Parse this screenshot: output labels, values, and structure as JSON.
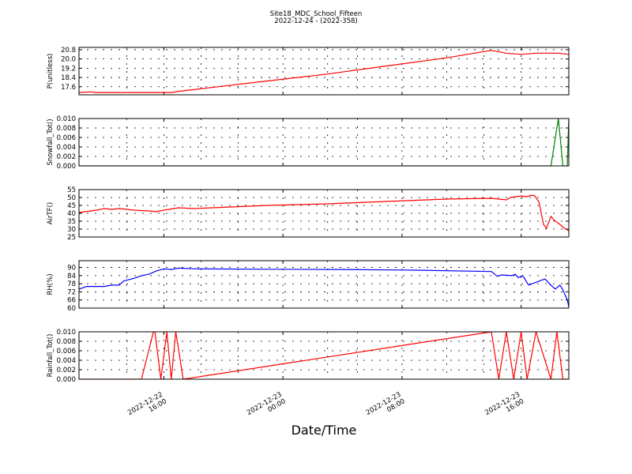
{
  "figure": {
    "title": "Site18_MDC_School_Fifteen",
    "subtitle": "2022-12-24 - (2022-358)",
    "xlabel": "Date/Time",
    "x_ticks": [
      {
        "t": 3,
        "lines": [
          "2022-12-22",
          "16:00"
        ]
      },
      {
        "t": 11,
        "lines": [
          "2022-12-23",
          "00:00"
        ]
      },
      {
        "t": 19,
        "lines": [
          "2022-12-23",
          "08:00"
        ]
      },
      {
        "t": 27,
        "lines": [
          "2022-12-23",
          "16:00"
        ]
      }
    ],
    "x_minor_ticks": [
      0.5,
      5.5,
      8,
      14,
      16,
      22,
      24.5
    ]
  },
  "chart_data": [
    {
      "type": "line",
      "id": "p",
      "ylabel": "P(unitless)",
      "color": "#ff0000",
      "ylim": [
        16.9,
        21.0
      ],
      "yticks": [
        17.6,
        18.4,
        19.2,
        20.0,
        20.8
      ],
      "ytick_labels": [
        "17.6",
        "18.4",
        "19.2",
        "20.0",
        "20.8"
      ],
      "points": [
        [
          -2.7,
          17.1
        ],
        [
          -1.9,
          17.15
        ],
        [
          -1.6,
          17.1
        ],
        [
          0,
          17.1
        ],
        [
          2,
          17.1
        ],
        [
          3.5,
          17.1
        ],
        [
          4,
          17.2
        ],
        [
          6,
          17.5
        ],
        [
          10,
          18.1
        ],
        [
          14,
          18.7
        ],
        [
          18,
          19.4
        ],
        [
          22,
          20.1
        ],
        [
          25,
          20.75
        ],
        [
          26,
          20.5
        ],
        [
          27,
          20.4
        ],
        [
          28,
          20.5
        ],
        [
          29.5,
          20.5
        ],
        [
          30.2,
          20.4
        ]
      ]
    },
    {
      "type": "line",
      "id": "snowfall",
      "ylabel": "Snowfall_Tot()",
      "color": "#008000",
      "ylim": [
        0,
        0.01
      ],
      "yticks": [
        0,
        0.002,
        0.004,
        0.006,
        0.008,
        0.01
      ],
      "ytick_labels": [
        "0.000",
        "0.002",
        "0.004",
        "0.006",
        "0.008",
        "0.010"
      ],
      "points": [
        [
          -2.7,
          0
        ],
        [
          28.5,
          0
        ],
        [
          29.0,
          0
        ],
        [
          29.5,
          0.01
        ],
        [
          29.8,
          0
        ],
        [
          30.1,
          0
        ],
        [
          30.2,
          0.01
        ]
      ]
    },
    {
      "type": "line",
      "id": "airtf",
      "ylabel": "AirTF()",
      "color": "#ff0000",
      "ylim": [
        25,
        55
      ],
      "yticks": [
        25,
        30,
        35,
        40,
        45,
        50,
        55
      ],
      "ytick_labels": [
        "25",
        "30",
        "35",
        "40",
        "45",
        "50",
        "55"
      ],
      "points": [
        [
          -2.7,
          40.5
        ],
        [
          -1.5,
          42
        ],
        [
          -1,
          43
        ],
        [
          -0.5,
          42.5
        ],
        [
          0,
          43
        ],
        [
          0.5,
          42.5
        ],
        [
          1,
          42
        ],
        [
          2,
          41.5
        ],
        [
          2.5,
          41
        ],
        [
          3,
          42
        ],
        [
          4,
          43.5
        ],
        [
          5,
          43
        ],
        [
          10,
          45
        ],
        [
          14,
          46
        ],
        [
          18,
          47.5
        ],
        [
          22,
          49
        ],
        [
          25,
          49.5
        ],
        [
          26,
          48.5
        ],
        [
          26.3,
          50
        ],
        [
          27,
          51
        ],
        [
          27.4,
          50.5
        ],
        [
          27.7,
          51.5
        ],
        [
          27.9,
          51.2
        ],
        [
          28.2,
          47
        ],
        [
          28.5,
          33
        ],
        [
          28.7,
          30.5
        ],
        [
          29,
          38
        ],
        [
          29.3,
          35
        ],
        [
          29.6,
          33
        ],
        [
          29.9,
          30.5
        ],
        [
          30.2,
          29
        ]
      ]
    },
    {
      "type": "line",
      "id": "rh",
      "ylabel": "RH(%)",
      "color": "#0000ff",
      "ylim": [
        60,
        95
      ],
      "yticks": [
        60,
        66,
        72,
        78,
        84,
        90
      ],
      "ytick_labels": [
        "60",
        "66",
        "72",
        "78",
        "84",
        "90"
      ],
      "points": [
        [
          -2.7,
          74
        ],
        [
          -2.2,
          76
        ],
        [
          -1,
          76
        ],
        [
          -0.5,
          77
        ],
        [
          0,
          77
        ],
        [
          0.3,
          80
        ],
        [
          1,
          82
        ],
        [
          1.5,
          84
        ],
        [
          2,
          85
        ],
        [
          2.5,
          87.5
        ],
        [
          3,
          89
        ],
        [
          3.5,
          88.5
        ],
        [
          4,
          89.5
        ],
        [
          5,
          89
        ],
        [
          10,
          88.7
        ],
        [
          15,
          88.5
        ],
        [
          20,
          88
        ],
        [
          25,
          87
        ],
        [
          25.4,
          83.5
        ],
        [
          25.7,
          84.5
        ],
        [
          26.4,
          84
        ],
        [
          26.6,
          85
        ],
        [
          26.8,
          82.5
        ],
        [
          27.1,
          84
        ],
        [
          27.5,
          77
        ],
        [
          28.6,
          81.5
        ],
        [
          29,
          77
        ],
        [
          29.3,
          74
        ],
        [
          29.6,
          77
        ],
        [
          29.8,
          73.5
        ],
        [
          30.1,
          66
        ],
        [
          30.2,
          61
        ]
      ]
    },
    {
      "type": "line",
      "id": "rainfall",
      "ylabel": "Rainfall_Tot()",
      "color": "#ff0000",
      "ylim": [
        0,
        0.01
      ],
      "yticks": [
        0,
        0.002,
        0.004,
        0.006,
        0.008,
        0.01
      ],
      "ytick_labels": [
        "0.000",
        "0.002",
        "0.004",
        "0.006",
        "0.008",
        "0.010"
      ],
      "points": [
        [
          -2.7,
          0
        ],
        [
          1.5,
          0
        ],
        [
          2.3,
          0.01
        ],
        [
          2.4,
          0.01
        ],
        [
          2.8,
          0
        ],
        [
          3.2,
          0.01
        ],
        [
          3.5,
          0
        ],
        [
          3.8,
          0.01
        ],
        [
          4.3,
          0
        ],
        [
          25,
          0.01
        ],
        [
          25.5,
          0
        ],
        [
          26,
          0.01
        ],
        [
          26.5,
          0
        ],
        [
          27,
          0.01
        ],
        [
          27.4,
          0
        ],
        [
          28,
          0.01
        ],
        [
          29,
          0
        ],
        [
          29.4,
          0.01
        ],
        [
          29.8,
          0
        ],
        [
          30.2,
          0
        ]
      ]
    }
  ]
}
